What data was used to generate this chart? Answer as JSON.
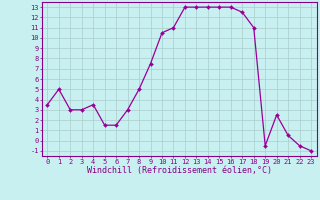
{
  "hours": [
    0,
    1,
    2,
    3,
    4,
    5,
    6,
    7,
    8,
    9,
    10,
    11,
    12,
    13,
    14,
    15,
    16,
    17,
    18,
    19,
    20,
    21,
    22,
    23
  ],
  "windchill": [
    3.5,
    5.0,
    3.0,
    3.0,
    3.5,
    1.5,
    1.5,
    3.0,
    5.0,
    7.5,
    10.5,
    11.0,
    13.0,
    13.0,
    13.0,
    13.0,
    13.0,
    12.5,
    11.0,
    -0.5,
    2.5,
    0.5,
    -0.5,
    -1.0
  ],
  "line_color": "#990099",
  "marker": "D",
  "markersize": 2,
  "linewidth": 0.9,
  "background_color": "#c8f0f0",
  "grid_color": "#aacccc",
  "xlabel": "Windchill (Refroidissement éolien,°C)",
  "ylim": [
    -1.5,
    13.5
  ],
  "xlim": [
    -0.5,
    23.5
  ],
  "yticks": [
    -1,
    0,
    1,
    2,
    3,
    4,
    5,
    6,
    7,
    8,
    9,
    10,
    11,
    12,
    13
  ],
  "xticks": [
    0,
    1,
    2,
    3,
    4,
    5,
    6,
    7,
    8,
    9,
    10,
    11,
    12,
    13,
    14,
    15,
    16,
    17,
    18,
    19,
    20,
    21,
    22,
    23
  ],
  "tick_fontsize": 5,
  "xlabel_fontsize": 6,
  "tick_color": "#880088",
  "spine_color": "#880088"
}
